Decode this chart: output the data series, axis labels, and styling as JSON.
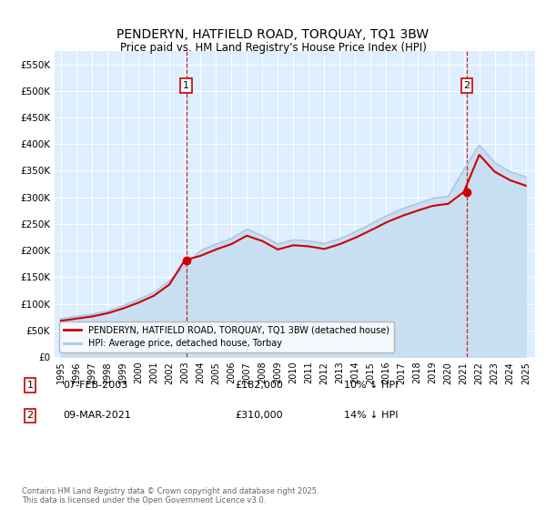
{
  "title": "PENDERYN, HATFIELD ROAD, TORQUAY, TQ1 3BW",
  "subtitle": "Price paid vs. HM Land Registry's House Price Index (HPI)",
  "title_fontsize": 10,
  "subtitle_fontsize": 9,
  "background_color": "#ffffff",
  "plot_bg_color": "#ddeeff",
  "ylim": [
    0,
    575000
  ],
  "yticks": [
    0,
    50000,
    100000,
    150000,
    200000,
    250000,
    300000,
    350000,
    400000,
    450000,
    500000,
    550000
  ],
  "hpi_color": "#aac8e8",
  "hpi_fill_color": "#c8dff2",
  "property_color": "#cc0000",
  "sale1_x": 2003.1,
  "sale1_y": 182000,
  "sale2_x": 2021.2,
  "sale2_y": 310000,
  "vline_color": "#cc0000",
  "legend_label1": "PENDERYN, HATFIELD ROAD, TORQUAY, TQ1 3BW (detached house)",
  "legend_label2": "HPI: Average price, detached house, Torbay",
  "footnote": "Contains HM Land Registry data © Crown copyright and database right 2025.\nThis data is licensed under the Open Government Licence v3.0.",
  "xmin": 1994.6,
  "xmax": 2025.6,
  "xtick_years": [
    1995,
    1996,
    1997,
    1998,
    1999,
    2000,
    2001,
    2002,
    2003,
    2004,
    2005,
    2006,
    2007,
    2008,
    2009,
    2010,
    2011,
    2012,
    2013,
    2014,
    2015,
    2016,
    2017,
    2018,
    2019,
    2020,
    2021,
    2022,
    2023,
    2024,
    2025
  ],
  "years_hpi": [
    1995,
    1996,
    1997,
    1998,
    1999,
    2000,
    2001,
    2002,
    2003,
    2004,
    2005,
    2006,
    2007,
    2008,
    2009,
    2010,
    2011,
    2012,
    2013,
    2014,
    2015,
    2016,
    2017,
    2018,
    2019,
    2020,
    2021,
    2022,
    2023,
    2024,
    2025
  ],
  "hpi_values": [
    72000,
    76000,
    80000,
    86000,
    96000,
    108000,
    121000,
    143000,
    170000,
    200000,
    212000,
    222000,
    240000,
    228000,
    212000,
    220000,
    218000,
    213000,
    222000,
    235000,
    250000,
    265000,
    278000,
    288000,
    298000,
    302000,
    352000,
    398000,
    365000,
    348000,
    338000
  ],
  "prop_values": [
    68000,
    72000,
    76000,
    82000,
    91000,
    102000,
    115000,
    136000,
    182000,
    190000,
    202000,
    212000,
    228000,
    218000,
    202000,
    210000,
    208000,
    203000,
    212000,
    224000,
    238000,
    253000,
    265000,
    275000,
    284000,
    288000,
    310000,
    380000,
    348000,
    332000,
    322000
  ]
}
